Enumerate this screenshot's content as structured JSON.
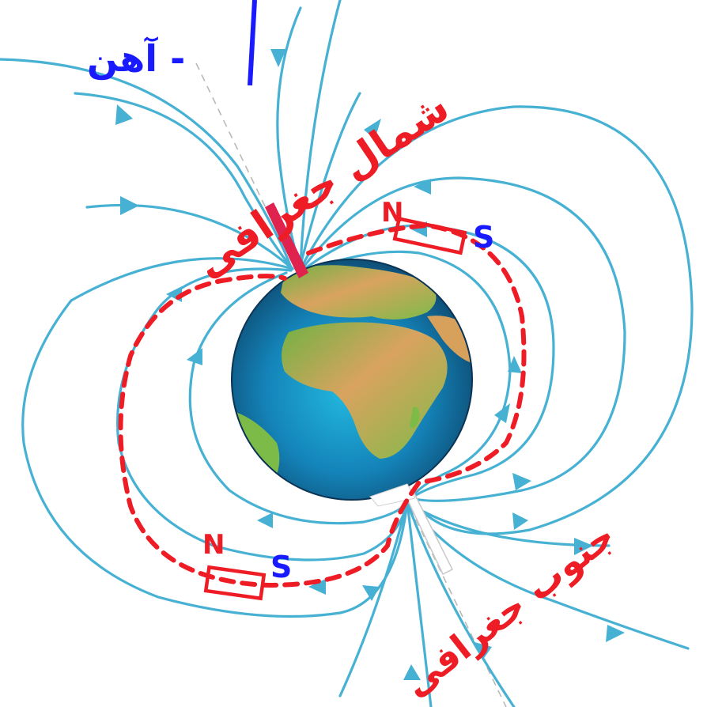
{
  "annotations": {
    "magnet_word": "آهن - ",
    "north_label": "شمال جغرافی",
    "south_label": "جنوب جغرافی",
    "top_magnet_n": "N",
    "top_magnet_s": "S",
    "bottom_magnet_n": "N",
    "bottom_magnet_s": "S"
  },
  "colors": {
    "field_lines": "#47b1d4",
    "red_annotation": "#ee1c25",
    "blue_annotation": "#1a1aff",
    "north_needle": "#e0224f",
    "south_needle": "#ffffff"
  }
}
